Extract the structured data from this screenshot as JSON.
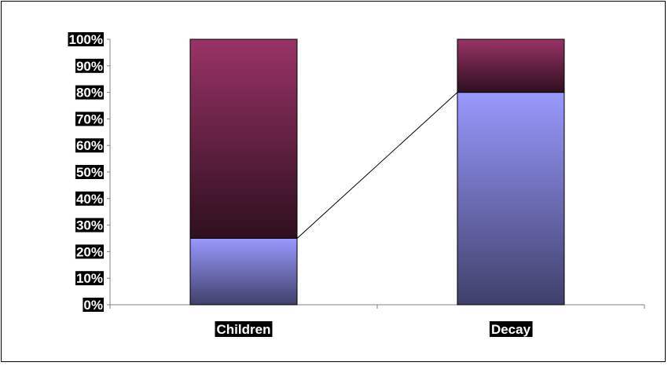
{
  "chart_data": {
    "type": "bar",
    "stacked": true,
    "categories": [
      "Children",
      "Decay"
    ],
    "series": [
      {
        "values": [
          25,
          80
        ],
        "color": "#9999ff"
      },
      {
        "values": [
          75,
          20
        ],
        "color": "#993366"
      }
    ],
    "y_ticks": [
      "0%",
      "10%",
      "20%",
      "30%",
      "40%",
      "50%",
      "60%",
      "70%",
      "80%",
      "90%",
      "100%"
    ],
    "ylim": [
      0,
      100
    ],
    "grid": false,
    "legend": "none",
    "connector_line": true
  }
}
